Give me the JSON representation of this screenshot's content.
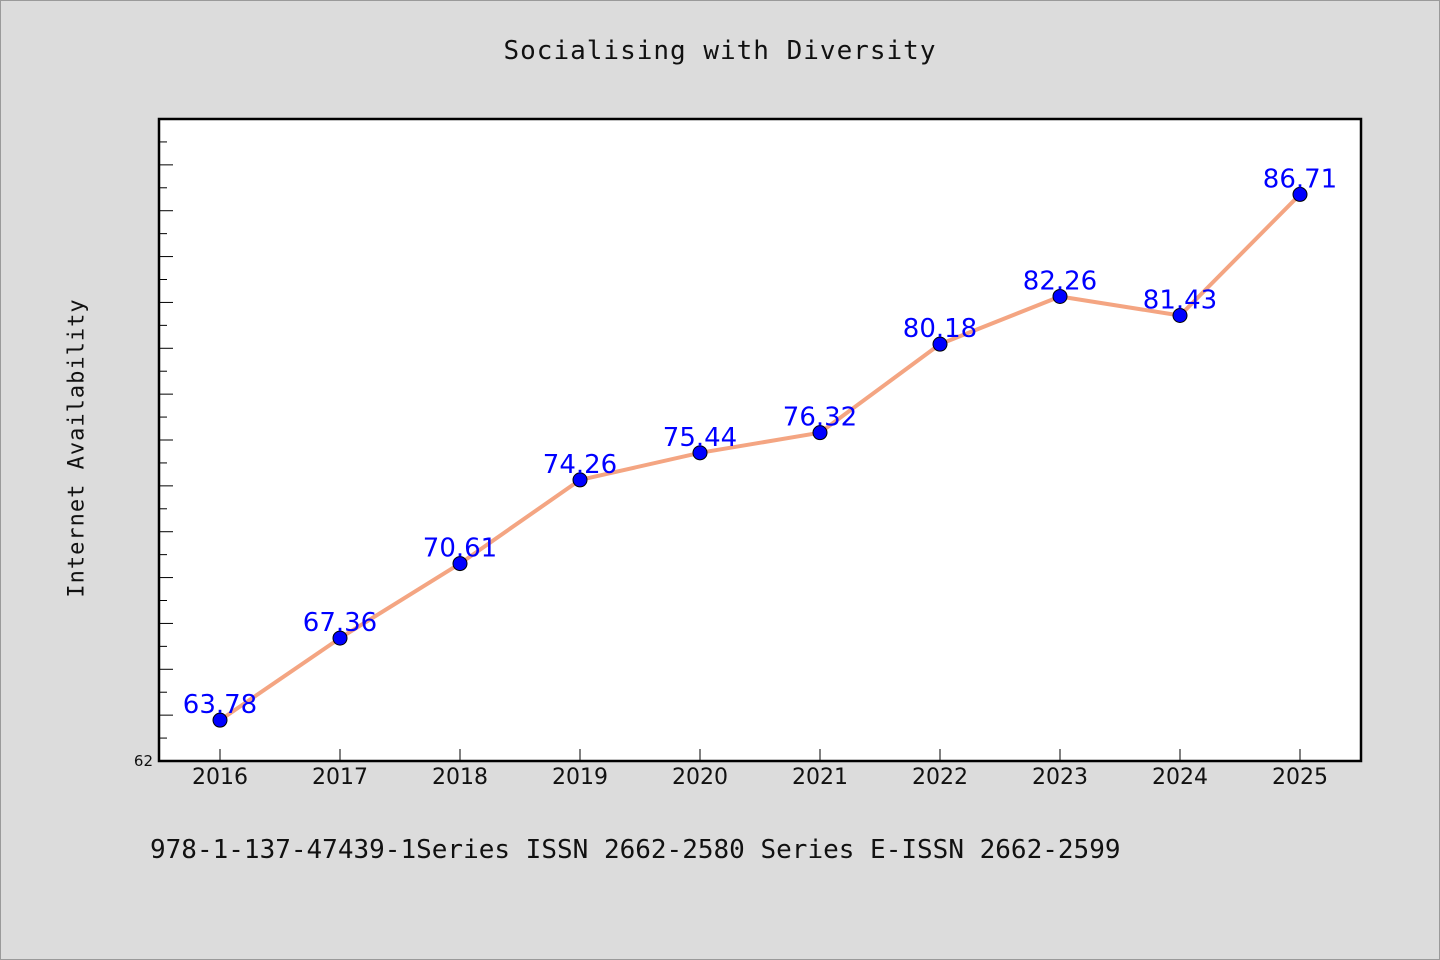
{
  "chart_data": {
    "type": "line",
    "title": "Socialising with Diversity",
    "xlabel": "",
    "ylabel": "Internet Availability",
    "categories": [
      "2016",
      "2017",
      "2018",
      "2019",
      "2020",
      "2021",
      "2022",
      "2023",
      "2024",
      "2025"
    ],
    "series": [
      {
        "values": [
          63.78,
          67.36,
          70.61,
          74.26,
          75.44,
          76.32,
          80.18,
          82.26,
          81.43,
          86.71
        ],
        "labels": [
          "63.78",
          "67.36",
          "70.61",
          "74.26",
          "75.44",
          "76.32",
          "80.18",
          "82.26",
          "81.43",
          "86.71"
        ],
        "line_color": "#f4a582",
        "marker_color": "#0000ff",
        "label_color": "#0000ff"
      }
    ],
    "ylim": [
      62,
      90
    ],
    "y_tick_labels": [
      "62"
    ],
    "grid": false,
    "legend": "none"
  },
  "footer": {
    "text": "978-1-137-47439-1Series ISSN 2662-2580 Series E-ISSN 2662-2599"
  },
  "colors": {
    "background": "#dcdcdc",
    "plot_background": "#ffffff",
    "axis": "#000000"
  }
}
